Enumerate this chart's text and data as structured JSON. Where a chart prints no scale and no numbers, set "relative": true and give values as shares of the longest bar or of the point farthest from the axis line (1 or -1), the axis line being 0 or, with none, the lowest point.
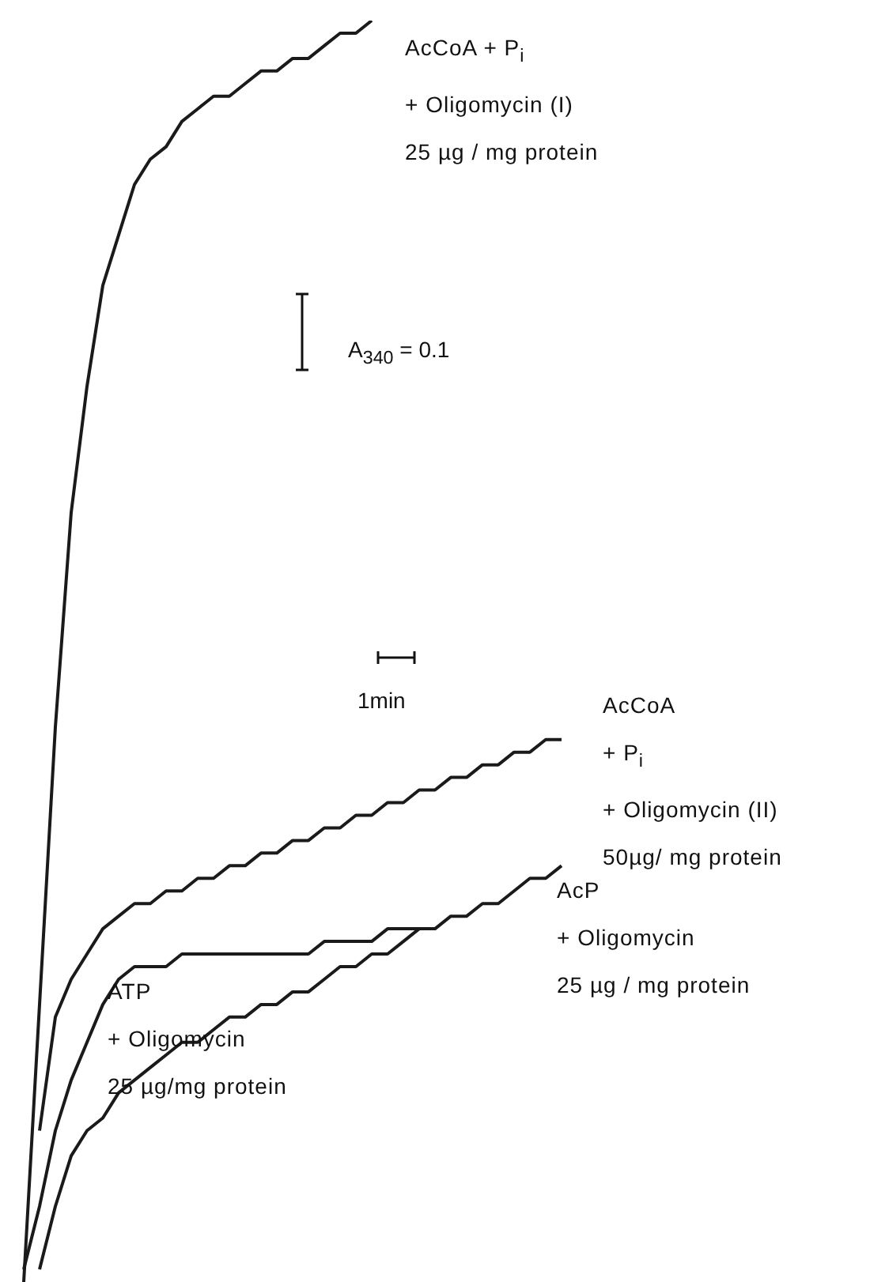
{
  "chart_data": {
    "type": "line",
    "relative": true,
    "annotations": [
      "A$_{340}$ = 0.1",
      "1min"
    ],
    "categories": [
      null,
      null,
      null,
      null,
      null,
      null,
      null,
      null,
      null,
      null,
      null,
      null,
      null,
      null,
      null,
      null,
      null,
      null,
      null,
      null,
      null,
      null,
      null,
      null,
      null,
      null,
      null,
      null,
      null,
      null,
      null,
      null,
      null,
      null,
      null
    ],
    "series": [
      {
        "name": "AcCoA + P$_{i}$\n+ Oligomycin (I)\n25 µg / mg protein",
        "color": "#1a1a1a",
        "values": [
          0,
          0.22,
          0.44,
          0.61,
          0.71,
          0.79,
          0.83,
          0.87,
          0.89,
          0.9,
          0.92,
          0.93,
          0.94,
          0.94,
          0.95,
          0.96,
          0.96,
          0.97,
          0.97,
          0.98,
          0.99,
          0.99,
          1.0,
          null,
          null,
          null,
          null,
          null,
          null,
          null,
          null,
          null,
          null,
          null,
          null
        ]
      },
      {
        "name": "AcCoA\n+ P$_{i}$\n+ Oligomycin (II)\n50µg/ mg protein",
        "color": "#1a1a1a",
        "values": [
          null,
          0.12,
          0.21,
          0.24,
          0.26,
          0.28,
          0.29,
          0.3,
          0.3,
          0.31,
          0.31,
          0.32,
          0.32,
          0.33,
          0.33,
          0.34,
          0.34,
          0.35,
          0.35,
          0.36,
          0.36,
          0.37,
          0.37,
          0.38,
          0.38,
          0.39,
          0.39,
          0.4,
          0.4,
          0.41,
          0.41,
          0.42,
          0.42,
          0.43,
          0.43
        ]
      },
      {
        "name": "ATP\n+ Oligomycin\n25 µg/mg protein",
        "color": "#1a1a1a",
        "values": [
          0.01,
          0.06,
          0.12,
          0.16,
          0.19,
          0.22,
          0.24,
          0.25,
          0.25,
          0.25,
          0.26,
          0.26,
          0.26,
          0.26,
          0.26,
          0.26,
          0.26,
          0.26,
          0.26,
          0.27,
          0.27,
          0.27,
          0.27,
          0.28,
          0.28,
          0.28,
          null,
          null,
          null,
          null,
          null,
          null,
          null,
          null,
          null
        ]
      },
      {
        "name": "AcP\n+ Oligomycin\n25 µg / mg protein",
        "color": "#1a1a1a",
        "values": [
          null,
          0.01,
          0.06,
          0.1,
          0.12,
          0.13,
          0.15,
          0.16,
          0.17,
          0.18,
          0.19,
          0.19,
          0.2,
          0.21,
          0.21,
          0.22,
          0.22,
          0.23,
          0.23,
          0.24,
          0.25,
          0.25,
          0.26,
          0.26,
          0.27,
          0.28,
          0.28,
          0.29,
          0.29,
          0.3,
          0.3,
          0.31,
          0.32,
          0.32,
          0.33
        ]
      }
    ]
  }
}
